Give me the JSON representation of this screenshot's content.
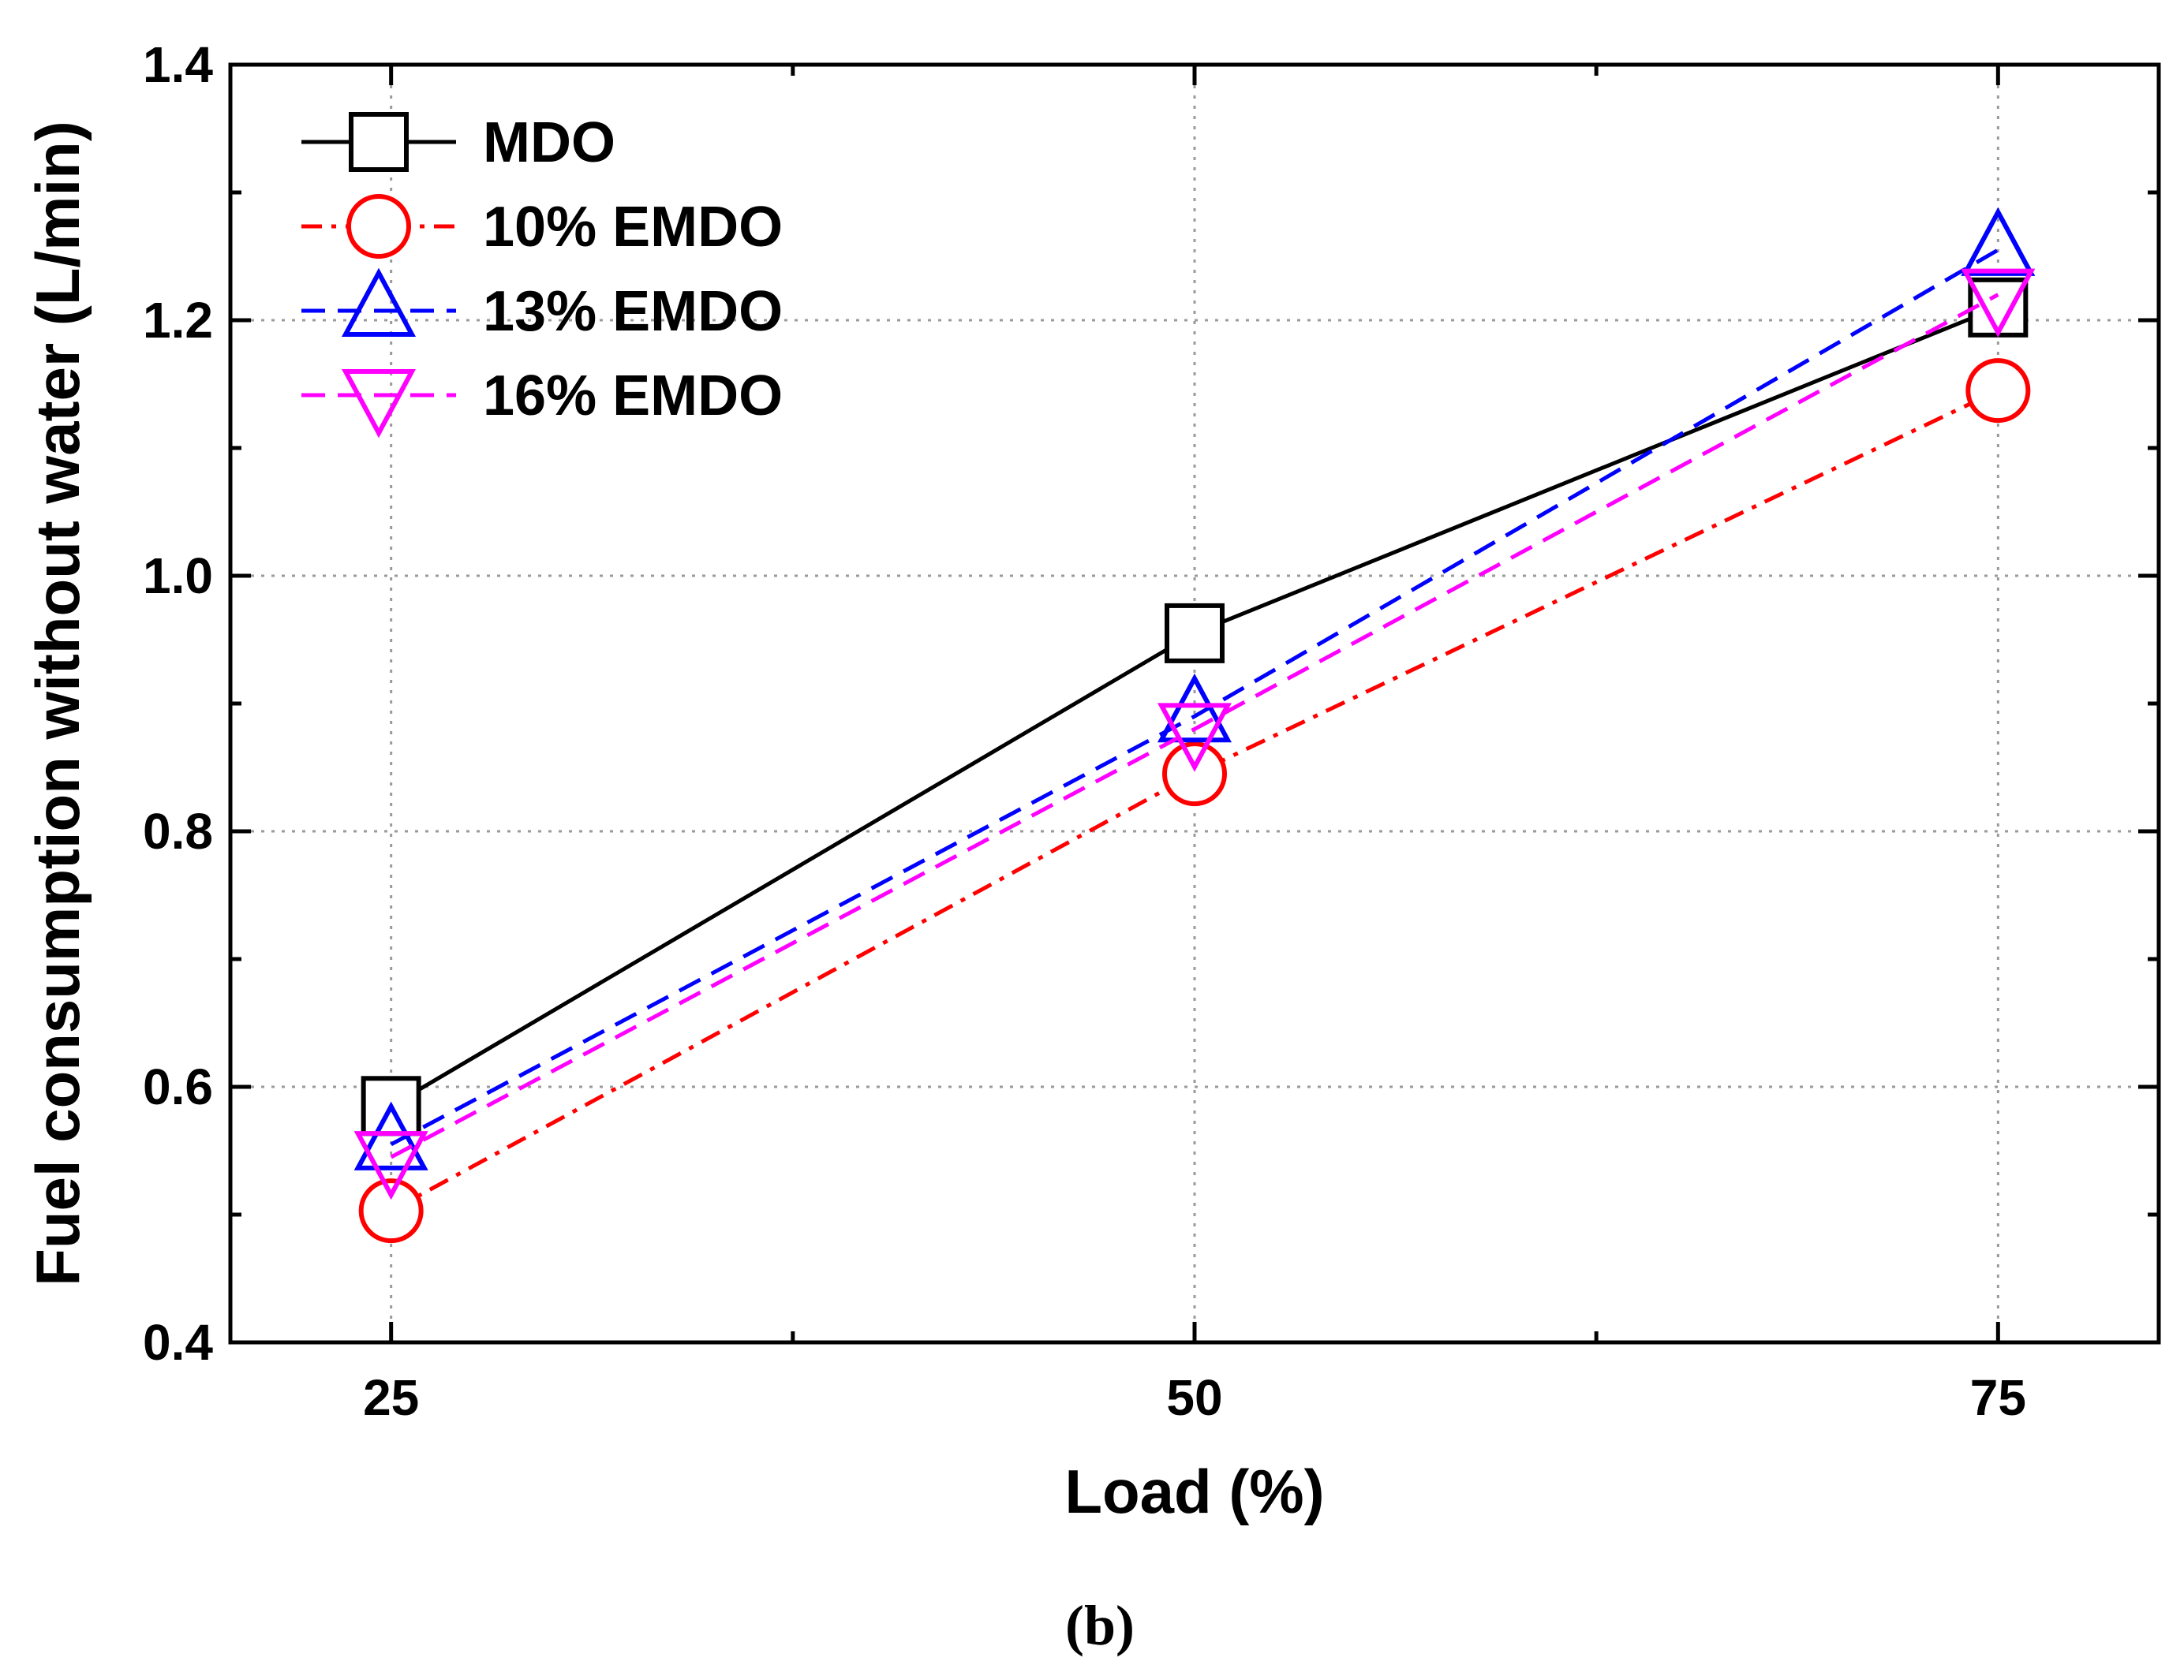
{
  "chart_data": {
    "type": "line",
    "title": "",
    "xlabel": "Load (%)",
    "ylabel": "Fuel consumption without water (L/min)",
    "caption": "(b)",
    "x": [
      25,
      50,
      75
    ],
    "x_tick_labels": [
      "25",
      "50",
      "75"
    ],
    "xlim": [
      20,
      80
    ],
    "ylim": [
      0.4,
      1.4
    ],
    "y_ticks": [
      0.4,
      0.6,
      0.8,
      1.0,
      1.2,
      1.4
    ],
    "y_tick_labels": [
      "0.4",
      "0.6",
      "0.8",
      "1.0",
      "1.2",
      "1.4"
    ],
    "grid": true,
    "legend_position": "top-left",
    "series": [
      {
        "name": "MDO",
        "values": [
          0.585,
          0.955,
          1.21
        ],
        "color": "#000000",
        "marker": "square",
        "line_style": "solid"
      },
      {
        "name": "10% EMDO",
        "values": [
          0.503,
          0.845,
          1.145
        ],
        "color": "#ff0000",
        "marker": "circle",
        "line_style": "dash-dot"
      },
      {
        "name": "13% EMDO",
        "values": [
          0.555,
          0.89,
          1.255
        ],
        "color": "#0000ff",
        "marker": "triangle-up",
        "line_style": "dashed"
      },
      {
        "name": "16% EMDO",
        "values": [
          0.545,
          0.88,
          1.22
        ],
        "color": "#ff00ff",
        "marker": "triangle-down",
        "line_style": "dashed"
      }
    ]
  }
}
